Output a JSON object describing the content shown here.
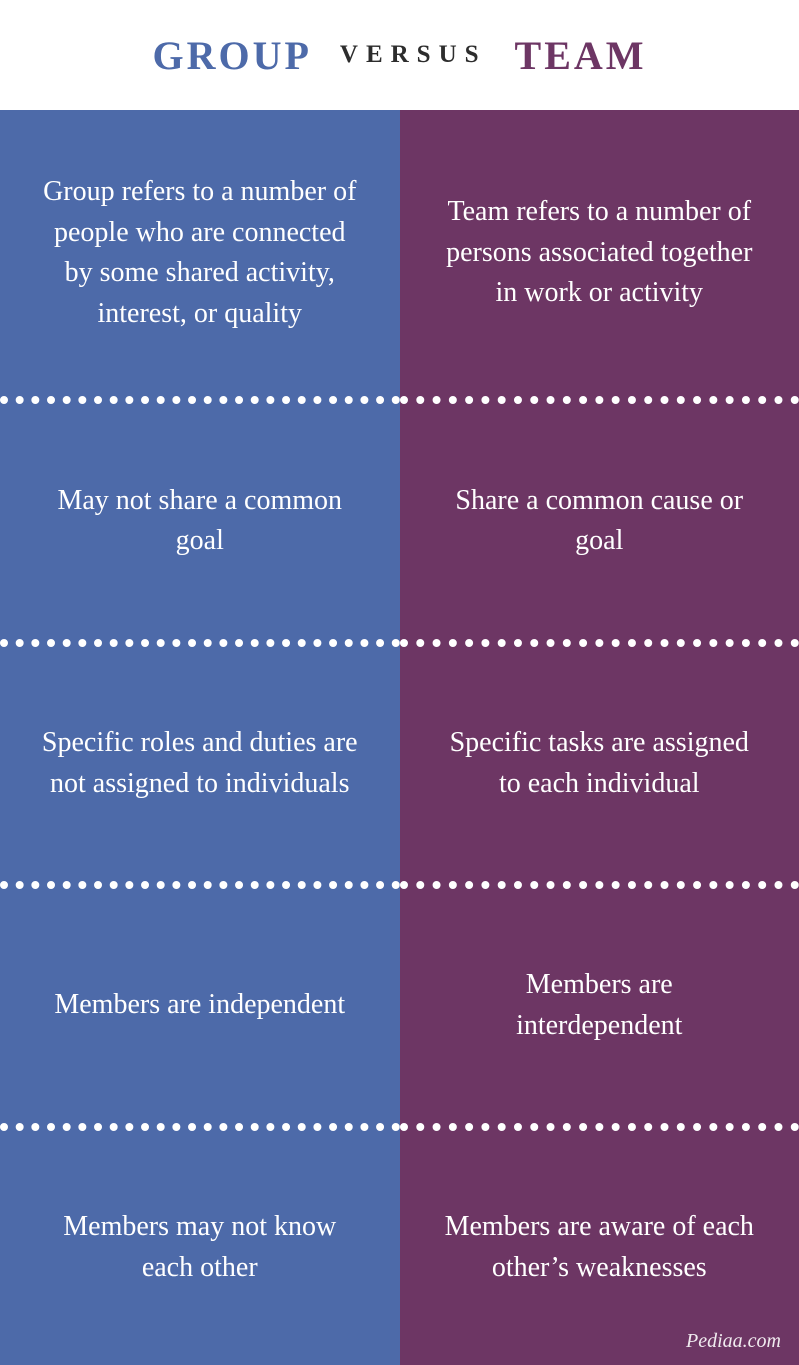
{
  "header": {
    "left_title": "GROUP",
    "versus": "VERSUS",
    "right_title": "TEAM",
    "left_color": "#4d6aa9",
    "versus_color": "#2d2d2d",
    "right_color": "#6d3664",
    "title_fontsize": "40px",
    "versus_fontsize": "25px"
  },
  "columns": {
    "left": {
      "background_color": "#4d6aa9",
      "text_color": "#ffffff",
      "items": [
        "Group refers to a number of people who are connected by some shared activity, interest, or quality",
        "May not share a common goal",
        "Specific roles and duties are not assigned to individuals",
        "Members are independent",
        "Members may not know each other"
      ]
    },
    "right": {
      "background_color": "#6d3664",
      "text_color": "#ffffff",
      "items": [
        "Team refers to a number of persons associated together in work or activity",
        "Share a common cause or goal",
        "Specific tasks are assigned to each individual",
        "Members are interdependent",
        "Members are aware of each other’s weaknesses"
      ]
    },
    "divider_color": "#ffffff",
    "cell_fontsize": "28px"
  },
  "attribution": "Pediaa.com"
}
